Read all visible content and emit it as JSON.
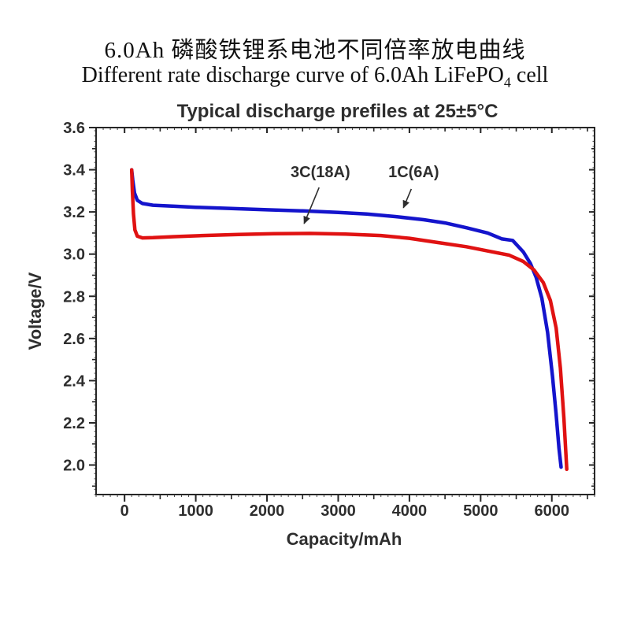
{
  "titles": {
    "chinese": "6.0Ah 磷酸铁锂系电池不同倍率放电曲线",
    "english_prefix": "Different rate discharge curve of 6.0Ah LiFePO",
    "english_subscript": "4",
    "english_suffix": " cell"
  },
  "chart_data": {
    "type": "line",
    "title": "Typical discharge prefiles at 25±5°C",
    "xlabel": "Capacity/mAh",
    "ylabel": "Voltage/V",
    "xlim": [
      -400,
      6600
    ],
    "ylim": [
      1.86,
      3.6
    ],
    "x_major_ticks": [
      0,
      1000,
      2000,
      3000,
      4000,
      5000,
      6000
    ],
    "x_minor_step": 500,
    "x_micro_step": 100,
    "y_major_ticks": [
      2.0,
      2.2,
      2.4,
      2.6,
      2.8,
      3.0,
      3.2,
      3.4,
      3.6
    ],
    "y_minor_step": 0.1,
    "y_micro_step": 0.025,
    "grid": false,
    "frame": true,
    "legend": "inline-annotations",
    "axis_color": "#262626",
    "text_color": "#2e2e2e",
    "background": "#ffffff",
    "series": [
      {
        "name": "1C(6A)",
        "color": "#1414cc",
        "points": [
          [
            100,
            3.4
          ],
          [
            115,
            3.35
          ],
          [
            140,
            3.29
          ],
          [
            180,
            3.255
          ],
          [
            250,
            3.24
          ],
          [
            400,
            3.232
          ],
          [
            700,
            3.227
          ],
          [
            1000,
            3.222
          ],
          [
            1500,
            3.216
          ],
          [
            2000,
            3.21
          ],
          [
            2500,
            3.205
          ],
          [
            3000,
            3.198
          ],
          [
            3400,
            3.19
          ],
          [
            3800,
            3.178
          ],
          [
            4200,
            3.163
          ],
          [
            4500,
            3.148
          ],
          [
            4800,
            3.125
          ],
          [
            5100,
            3.1
          ],
          [
            5300,
            3.072
          ],
          [
            5450,
            3.065
          ],
          [
            5600,
            3.01
          ],
          [
            5700,
            2.955
          ],
          [
            5780,
            2.89
          ],
          [
            5860,
            2.79
          ],
          [
            5940,
            2.63
          ],
          [
            6010,
            2.42
          ],
          [
            6060,
            2.24
          ],
          [
            6100,
            2.08
          ],
          [
            6130,
            1.99
          ]
        ]
      },
      {
        "name": "3C(18A)",
        "color": "#e01212",
        "points": [
          [
            100,
            3.4
          ],
          [
            110,
            3.3
          ],
          [
            125,
            3.19
          ],
          [
            145,
            3.115
          ],
          [
            180,
            3.085
          ],
          [
            250,
            3.077
          ],
          [
            400,
            3.078
          ],
          [
            700,
            3.083
          ],
          [
            1100,
            3.088
          ],
          [
            1600,
            3.093
          ],
          [
            2100,
            3.097
          ],
          [
            2600,
            3.098
          ],
          [
            3100,
            3.095
          ],
          [
            3600,
            3.088
          ],
          [
            4000,
            3.075
          ],
          [
            4400,
            3.055
          ],
          [
            4800,
            3.035
          ],
          [
            5100,
            3.015
          ],
          [
            5400,
            2.995
          ],
          [
            5600,
            2.965
          ],
          [
            5750,
            2.925
          ],
          [
            5880,
            2.865
          ],
          [
            5980,
            2.78
          ],
          [
            6060,
            2.65
          ],
          [
            6120,
            2.46
          ],
          [
            6170,
            2.22
          ],
          [
            6200,
            2.04
          ],
          [
            6210,
            1.98
          ]
        ]
      }
    ],
    "annotations": [
      {
        "text": "3C(18A)",
        "label_x": 2750,
        "label_v": 3.39,
        "arrow_from_x": 2732,
        "arrow_from_v": 3.316,
        "arrow_to_x": 2522,
        "arrow_to_v": 3.145
      },
      {
        "text": "1C(6A)",
        "label_x": 4060,
        "label_v": 3.39,
        "arrow_from_x": 4027,
        "arrow_from_v": 3.309,
        "arrow_to_x": 3916,
        "arrow_to_v": 3.22
      }
    ],
    "crossover_point": {
      "capacity_mAh": 5730,
      "voltage_V": 2.92
    },
    "end_of_discharge": [
      {
        "series": "1C(6A)",
        "capacity_mAh": 6130,
        "voltage_V": 2.0
      },
      {
        "series": "3C(18A)",
        "capacity_mAh": 6210,
        "voltage_V": 2.0
      }
    ]
  }
}
